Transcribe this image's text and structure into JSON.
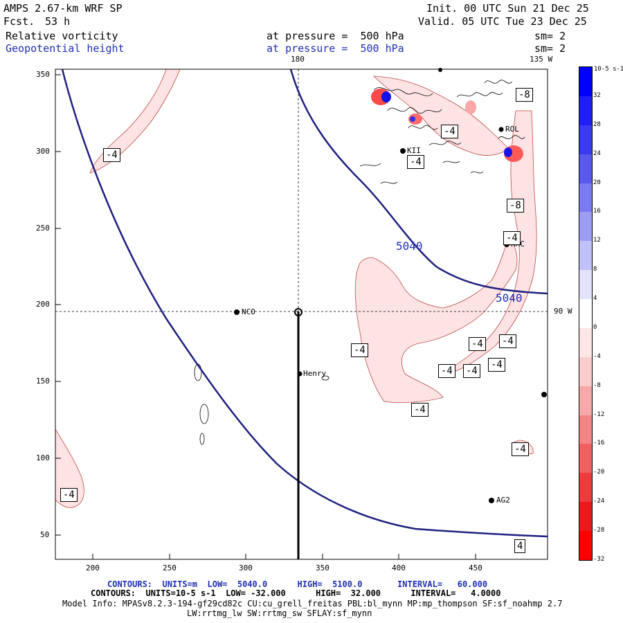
{
  "header": {
    "model": "AMPS 2.67-km WRF SP",
    "fcst_label": "Fcst.",
    "fcst_value": "53 h",
    "init": "Init. 00 UTC Sun 21 Dec 25",
    "valid": "Valid. 05 UTC Tue 23 Dec 25",
    "field1_name": "Relative vorticity",
    "field1_level": "at pressure =  500 hPa",
    "field1_sm": "sm= 2",
    "field2_name": "Geopotential height",
    "field2_level": "at pressure =  500 hPa",
    "field2_sm": "sm= 2"
  },
  "map": {
    "top_label_180": "180",
    "top_label_135w": "135 W",
    "right_label_90w": "90 W",
    "y_ticks": [
      "350",
      "300",
      "250",
      "200",
      "150",
      "100",
      "50"
    ],
    "x_ticks": [
      "200",
      "250",
      "300",
      "350",
      "400",
      "450"
    ],
    "stations": [
      {
        "name": "NCO"
      },
      {
        "name": "Henry"
      },
      {
        "name": "HRC"
      },
      {
        "name": "AG2"
      },
      {
        "name": "KII"
      },
      {
        "name": "ROL"
      }
    ],
    "height_contour_labels": [
      "5040",
      "5040"
    ],
    "vorticity_labels": [
      "-4",
      "-8",
      "-4",
      "-4",
      "-8",
      "-4",
      "-4",
      "-4",
      "-4",
      "-4",
      "-4",
      "-4",
      "-4",
      "-4",
      "-4",
      "-4",
      "4"
    ]
  },
  "colorbar": {
    "units": "10-5 s-1",
    "ticks": [
      "32",
      "28",
      "24",
      "20",
      "16",
      "12",
      "8",
      "4",
      "0",
      "-4",
      "-8",
      "-12",
      "-16",
      "-20",
      "-24",
      "-28",
      "-32"
    ],
    "colors": [
      "#0000ff",
      "#1f1ff5",
      "#3a3aee",
      "#5959ee",
      "#7a7af2",
      "#9d9df6",
      "#c1c1fa",
      "#e2e2fd",
      "#ffffff",
      "#fde6e6",
      "#fbcccc",
      "#f7a8a8",
      "#f48585",
      "#f06060",
      "#ed3c3c",
      "#ea1a1a",
      "#ff0000"
    ]
  },
  "footer": {
    "line1": "CONTOURS:  UNITS=m  LOW=  5040.0      HIGH=  5100.0       INTERVAL=   60.000",
    "line2": "CONTOURS:  UNITS=10-5 s-1  LOW= -32.000      HIGH=  32.000      INTERVAL=   4.0000",
    "line3": "Model Info: MPASv8.2.3-194-gf29cd82c CU:cu_grell_freitas PBL:bl_mynn MP:mp_thompson SF:sf_noahmp 2.7",
    "line4": "LW:rrtmg_lw SW:rrtmg_sw SFLAY:sf_mynn"
  }
}
